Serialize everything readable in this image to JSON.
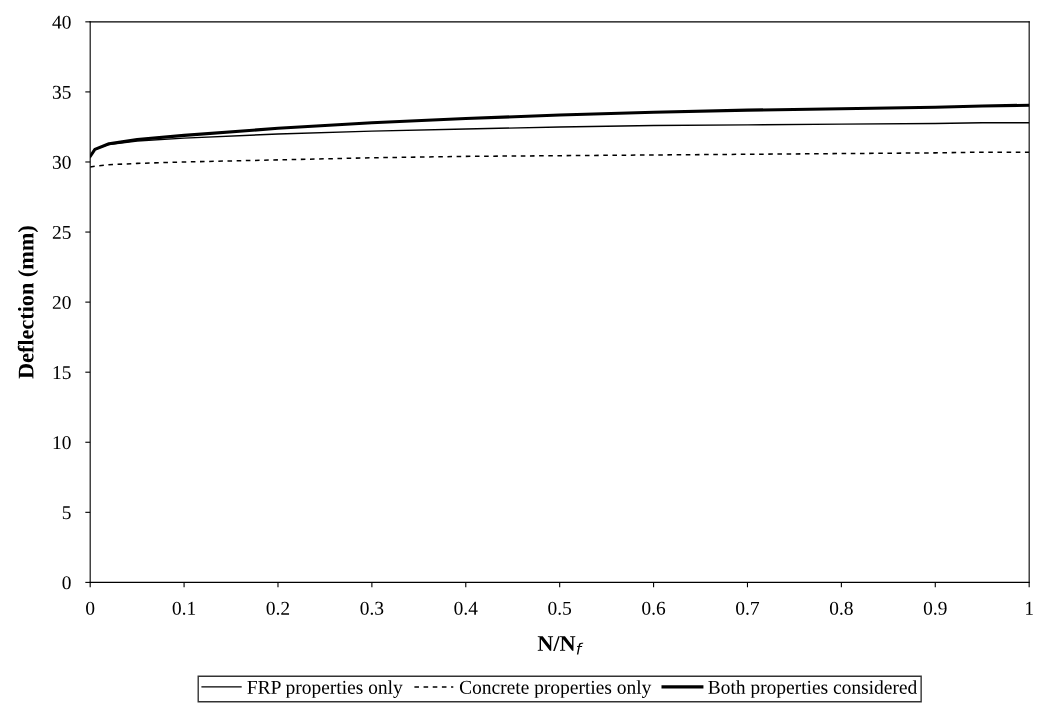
{
  "chart_data": {
    "type": "line",
    "xlabel": "N/N$_{f}$",
    "ylabel": "Deflection (mm)",
    "x": [
      0,
      0.005,
      0.02,
      0.05,
      0.1,
      0.2,
      0.3,
      0.4,
      0.5,
      0.6,
      0.7,
      0.8,
      0.9,
      0.95,
      1.0
    ],
    "series": [
      {
        "name": "FRP properties only",
        "color": "#000000",
        "line_style": "solid",
        "values": [
          30.4,
          30.9,
          31.25,
          31.5,
          31.7,
          32.0,
          32.2,
          32.35,
          32.5,
          32.6,
          32.65,
          32.7,
          32.75,
          32.8,
          32.8
        ]
      },
      {
        "name": "Concrete properties only",
        "color": "#000000",
        "line_style": "dashed",
        "values": [
          29.65,
          29.7,
          29.8,
          29.9,
          30.0,
          30.15,
          30.3,
          30.4,
          30.45,
          30.5,
          30.55,
          30.6,
          30.65,
          30.7,
          30.7
        ]
      },
      {
        "name": "Both properties considered",
        "color": "#000000",
        "line_style": "solid",
        "values": [
          30.4,
          30.9,
          31.3,
          31.6,
          31.9,
          32.4,
          32.8,
          33.1,
          33.35,
          33.55,
          33.7,
          33.8,
          33.9,
          34.0,
          34.05
        ]
      }
    ],
    "xlim": [
      0,
      1
    ],
    "xticks": [
      0,
      0.1,
      0.2,
      0.3,
      0.4,
      0.5,
      0.6,
      0.7,
      0.8,
      0.9,
      1
    ],
    "ylim": [
      0,
      40
    ],
    "yticks": [
      0,
      5,
      10,
      15,
      20,
      25,
      30,
      35,
      40
    ],
    "grid": false,
    "legend": "bottom",
    "marker": "none"
  }
}
